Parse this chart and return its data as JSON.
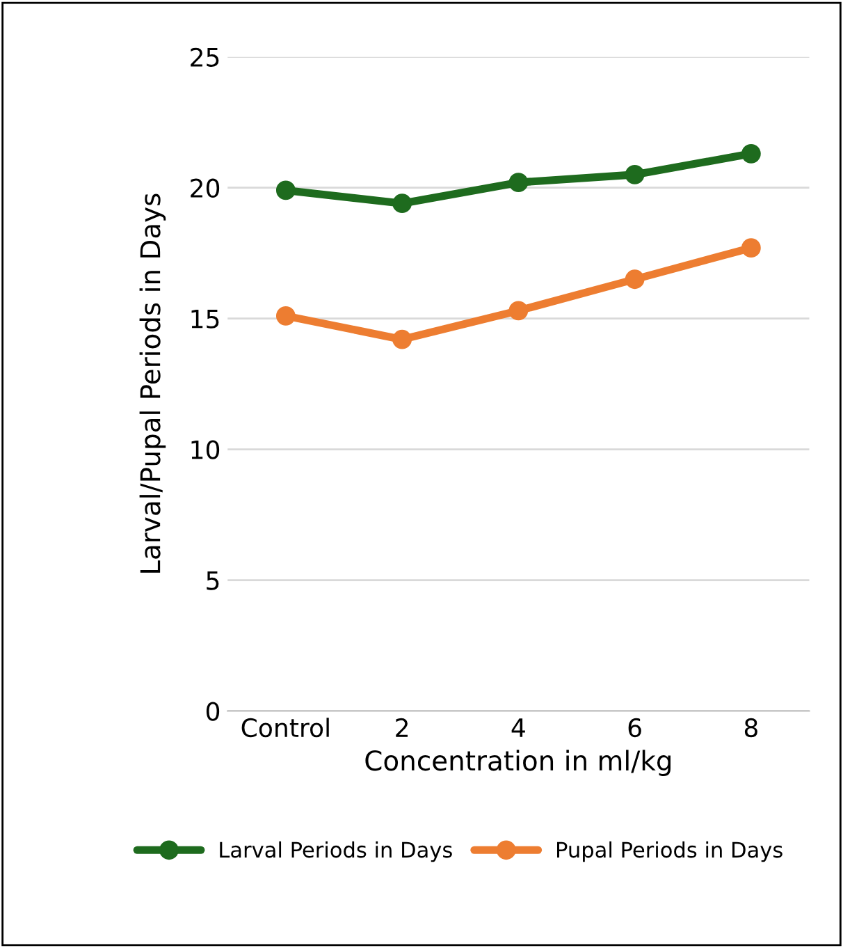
{
  "chart_data": {
    "type": "line",
    "xlabel": "Concentration in ml/kg",
    "ylabel": "Larval/Pupal Periods in Days",
    "categories": [
      "Control",
      "2",
      "4",
      "6",
      "8"
    ],
    "series": [
      {
        "name": "Larval Periods in Days",
        "color": "#1e6b1e",
        "values": [
          19.9,
          19.4,
          20.2,
          20.5,
          21.3
        ]
      },
      {
        "name": "Pupal Periods in Days",
        "color": "#ed7d31",
        "values": [
          15.1,
          14.2,
          15.3,
          16.5,
          17.7
        ]
      }
    ],
    "ylim": [
      0,
      25
    ],
    "yticks": [
      0,
      5,
      10,
      15,
      20,
      25
    ],
    "grid": "y",
    "legend": "bottom",
    "marker": "circle",
    "line_style": "solid"
  }
}
